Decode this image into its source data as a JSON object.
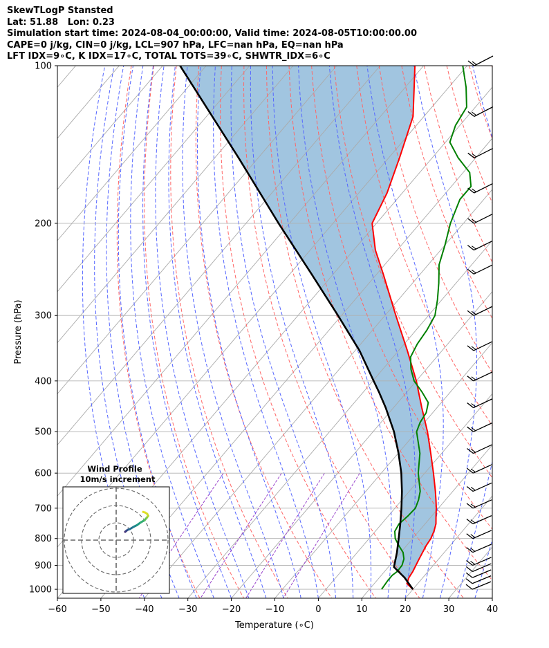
{
  "header": {
    "lines": [
      "SkewTLogP Stansted",
      "Lat: 51.88   Lon: 0.23",
      "Simulation start time: 2024-08-04_00:00:00, Valid time: 2024-08-05T10:00:00.00",
      "CAPE=0 j/kg, CIN=0 j/kg, LCL=907 hPa, LFC=nan hPa, EQ=nan hPa",
      "LFT IDX=9∘C, K IDX=17∘C, TOTAL TOTS=39∘C, SHWTR_IDX=6∘C"
    ]
  },
  "colors": {
    "temperature": "#ff0000",
    "dewpoint": "#008000",
    "parcel": "#000000",
    "cape_fill": "#a1c5e0",
    "isotherm": "#aaaaaa",
    "dry_adiabat": "#ff6666",
    "moist_adiabat": "#5566ff",
    "mixing_ratio": "#9944cc",
    "grid": "#b0b0b0"
  },
  "chart_data": {
    "type": "line",
    "xlabel": "Temperature (∘C)",
    "ylabel": "Pressure (hPa)",
    "xlim": [
      -60,
      40
    ],
    "ylim": [
      1040,
      100
    ],
    "yscale": "log",
    "skew": true,
    "xticks": [
      -60,
      -50,
      -40,
      -30,
      -20,
      -10,
      0,
      10,
      20,
      30,
      40
    ],
    "yticks": [
      100,
      200,
      300,
      400,
      500,
      600,
      700,
      800,
      900,
      1000
    ],
    "grid": true,
    "series": [
      {
        "kind": "temperature",
        "p": [
          1000,
          975,
          950,
          925,
          900,
          875,
          850,
          825,
          800,
          775,
          750,
          725,
          700,
          675,
          650,
          600,
          550,
          500,
          450,
          400,
          350,
          300,
          250,
          225,
          200,
          175,
          150,
          125,
          100
        ],
        "t": [
          20.0,
          17.5,
          16.8,
          16.5,
          16.0,
          15.5,
          15.0,
          14.5,
          14.2,
          13.5,
          12.5,
          11.0,
          9.5,
          7.8,
          6.0,
          2.0,
          -2.5,
          -7.5,
          -13.5,
          -20.0,
          -28.0,
          -37.5,
          -48.5,
          -55.0,
          -61.0,
          -63.5,
          -67.5,
          -72.5,
          -82.0
        ]
      },
      {
        "kind": "dewpoint",
        "p": [
          1000,
          960,
          940,
          925,
          900,
          875,
          850,
          825,
          800,
          775,
          750,
          725,
          700,
          675,
          650,
          600,
          550,
          500,
          480,
          460,
          440,
          420,
          400,
          380,
          360,
          340,
          320,
          300,
          280,
          260,
          240,
          220,
          200,
          180,
          170,
          160,
          150,
          140,
          130,
          120,
          110,
          100
        ],
        "t": [
          12.8,
          12.5,
          12.5,
          12.9,
          12.8,
          12.0,
          10.5,
          8.2,
          6.0,
          4.5,
          4.0,
          4.5,
          4.7,
          3.8,
          2.5,
          -1.5,
          -5.0,
          -10.0,
          -11.0,
          -11.5,
          -13.0,
          -16.5,
          -20.5,
          -23.5,
          -26.0,
          -27.0,
          -27.5,
          -28.5,
          -31.0,
          -34.0,
          -37.5,
          -40.0,
          -43.0,
          -45.5,
          -45.5,
          -48.5,
          -54.0,
          -59.0,
          -61.0,
          -62.0,
          -66.0,
          -71.0
        ]
      },
      {
        "kind": "parcel",
        "p": [
          1000,
          950,
          907,
          850,
          800,
          750,
          700,
          650,
          600,
          550,
          500,
          450,
          420,
          400,
          350,
          300,
          250,
          200,
          150,
          100
        ],
        "t": [
          20.0,
          15.8,
          11.3,
          9.1,
          6.8,
          4.3,
          1.5,
          -1.7,
          -5.4,
          -9.9,
          -15.2,
          -21.8,
          -26.4,
          -29.8,
          -39.0,
          -50.8,
          -65.0,
          -82.5,
          -104.5,
          -136.0
        ]
      }
    ],
    "wind_barbs_hpa": [
      1000,
      975,
      950,
      925,
      900,
      850,
      800,
      750,
      700,
      650,
      600,
      550,
      500,
      450,
      400,
      350,
      300,
      250,
      225,
      200,
      175,
      150,
      125,
      100
    ],
    "inset": {
      "title": "Wind Profile",
      "subtitle": "10m/s increment",
      "rings_ms": [
        10,
        20,
        30
      ],
      "hodograph_u": [
        -0.8,
        -0.5,
        0.2,
        1.0,
        2.5,
        3.8,
        5.2,
        6.8,
        7.6,
        8.2,
        7.8,
        7.0,
        6.2
      ],
      "hodograph_v": [
        -0.2,
        0.0,
        0.4,
        0.6,
        1.3,
        1.8,
        2.6,
        3.3,
        4.0,
        4.6,
        5.2,
        5.6,
        5.8
      ]
    }
  }
}
